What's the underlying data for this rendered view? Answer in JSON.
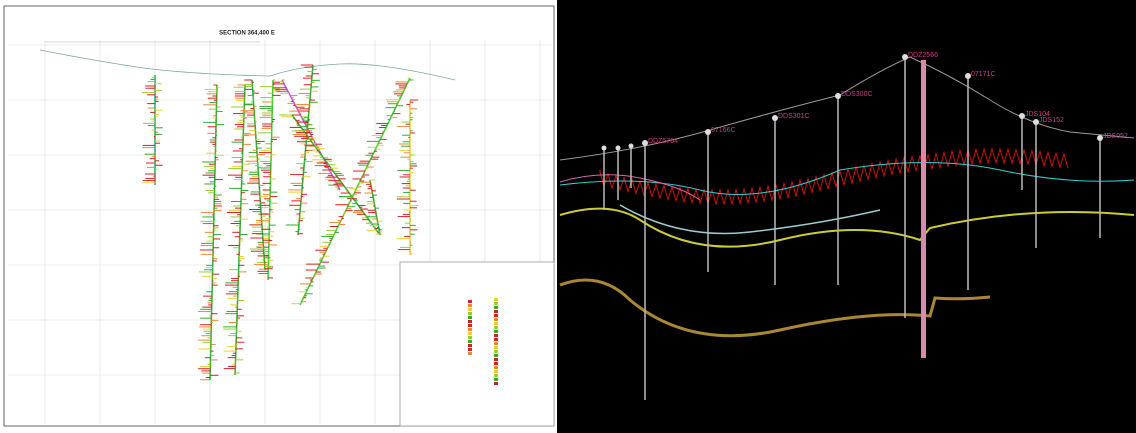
{
  "section": {
    "title": "SECTION 364,400 E"
  },
  "view3d": {
    "holes": [
      "DDZ2566",
      "07171C",
      "DDS300C",
      "DDS301C",
      "07166C",
      "DDZ5764",
      "JDS104",
      "JDS152",
      "JDS052"
    ]
  }
}
